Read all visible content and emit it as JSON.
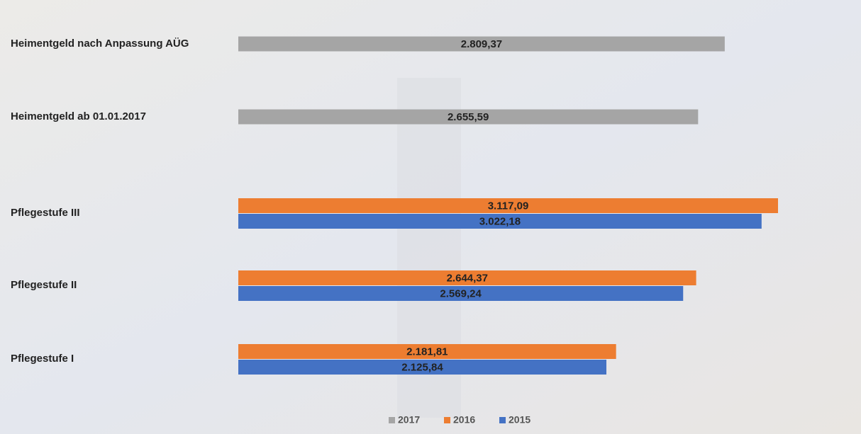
{
  "chart_data": {
    "type": "hbar",
    "categories": [
      "Heimentgeld nach Anpassung AÜG",
      "Heimentgeld ab 01.01.2017",
      "Pflegestufe III",
      "Pflegestufe II",
      "Pflegestufe I"
    ],
    "series": [
      {
        "name": "2017",
        "color": "#a5a5a5",
        "values": [
          2809.37,
          2655.59,
          null,
          null,
          null
        ],
        "value_labels": [
          "2.809,37",
          "2.655,59",
          null,
          null,
          null
        ]
      },
      {
        "name": "2016",
        "color": "#ed7d31",
        "values": [
          null,
          null,
          3117.09,
          2644.37,
          2181.81
        ],
        "value_labels": [
          null,
          null,
          "3.117,09",
          "2.644,37",
          "2.181,81"
        ]
      },
      {
        "name": "2015",
        "color": "#4472c4",
        "values": [
          null,
          null,
          3022.18,
          2569.24,
          2125.84
        ],
        "value_labels": [
          null,
          null,
          "3.022,18",
          "2.569,24",
          "2.125,84"
        ]
      }
    ],
    "legend": "bottom"
  }
}
